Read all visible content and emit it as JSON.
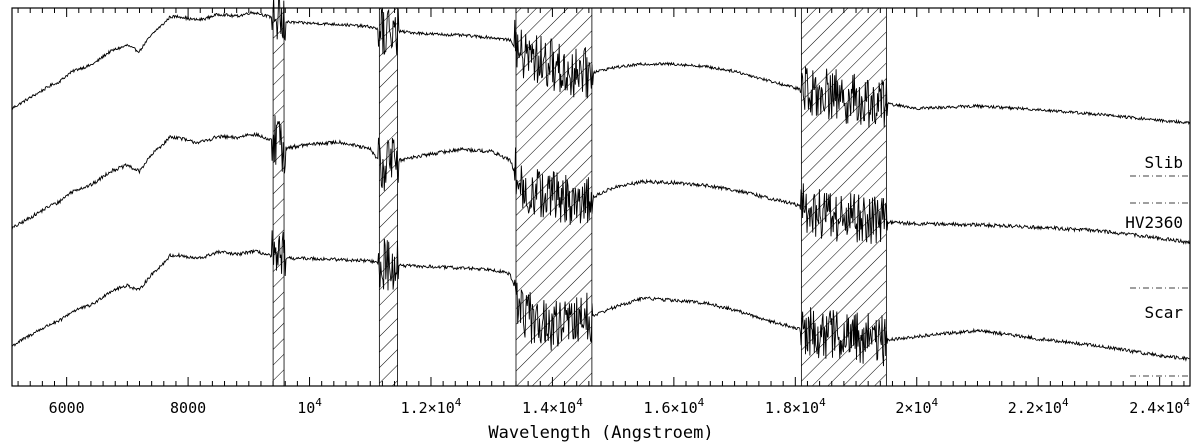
{
  "chart_data": {
    "type": "line",
    "title": "",
    "xlabel": "Wavelength (Angstroem)",
    "ylabel": "",
    "xlim": [
      5100,
      24500
    ],
    "grid": false,
    "legend": "none",
    "x_ticks": [
      {
        "value": 6000,
        "label": "6000"
      },
      {
        "value": 8000,
        "label": "8000"
      },
      {
        "value": 10000,
        "label": "10",
        "exp": "4",
        "mult": ""
      },
      {
        "value": 12000,
        "label": "1.2×10",
        "exp": "4"
      },
      {
        "value": 14000,
        "label": "1.4×10",
        "exp": "4"
      },
      {
        "value": 16000,
        "label": "1.6×10",
        "exp": "4"
      },
      {
        "value": 18000,
        "label": "1.8×10",
        "exp": "4"
      },
      {
        "value": 20000,
        "label": "2×10",
        "exp": "4"
      },
      {
        "value": 22000,
        "label": "2.2×10",
        "exp": "4"
      },
      {
        "value": 24000,
        "label": "2.4×10",
        "exp": "4"
      }
    ],
    "shaded_regions": [
      [
        9400,
        9580
      ],
      [
        11150,
        11450
      ],
      [
        13400,
        14650
      ],
      [
        18100,
        19500
      ]
    ],
    "series": [
      {
        "name": "Slib",
        "offset": 2.0,
        "noise": 0.012,
        "points": [
          [
            5100,
            0.18
          ],
          [
            5500,
            0.3
          ],
          [
            6000,
            0.45
          ],
          [
            6500,
            0.58
          ],
          [
            7000,
            0.72
          ],
          [
            7200,
            0.65
          ],
          [
            7500,
            0.85
          ],
          [
            7700,
            0.95
          ],
          [
            8000,
            0.92
          ],
          [
            8500,
            0.95
          ],
          [
            9000,
            0.97
          ],
          [
            9400,
            0.95
          ],
          [
            9600,
            0.9
          ],
          [
            10000,
            0.89
          ],
          [
            10500,
            0.88
          ],
          [
            11000,
            0.86
          ],
          [
            11200,
            0.83
          ],
          [
            11500,
            0.82
          ],
          [
            12000,
            0.8
          ],
          [
            12500,
            0.79
          ],
          [
            13000,
            0.77
          ],
          [
            13300,
            0.75
          ],
          [
            13500,
            0.62
          ],
          [
            13800,
            0.58
          ],
          [
            14000,
            0.55
          ],
          [
            14200,
            0.48
          ],
          [
            14500,
            0.46
          ],
          [
            15000,
            0.52
          ],
          [
            15500,
            0.55
          ],
          [
            16000,
            0.55
          ],
          [
            16500,
            0.53
          ],
          [
            17000,
            0.49
          ],
          [
            17500,
            0.42
          ],
          [
            18000,
            0.35
          ],
          [
            18500,
            0.31
          ],
          [
            19000,
            0.25
          ],
          [
            19500,
            0.22
          ],
          [
            20000,
            0.18
          ],
          [
            21000,
            0.2
          ],
          [
            22000,
            0.17
          ],
          [
            23000,
            0.13
          ],
          [
            24000,
            0.08
          ],
          [
            24500,
            0.06
          ]
        ]
      },
      {
        "name": "HV2360",
        "offset": 1.0,
        "noise": 0.015,
        "points": [
          [
            5100,
            0.18
          ],
          [
            5500,
            0.3
          ],
          [
            6000,
            0.45
          ],
          [
            6500,
            0.58
          ],
          [
            7000,
            0.72
          ],
          [
            7200,
            0.65
          ],
          [
            7500,
            0.85
          ],
          [
            7700,
            0.95
          ],
          [
            8000,
            0.9
          ],
          [
            8500,
            0.93
          ],
          [
            9000,
            0.96
          ],
          [
            9400,
            0.92
          ],
          [
            9600,
            0.85
          ],
          [
            10000,
            0.88
          ],
          [
            10500,
            0.9
          ],
          [
            11000,
            0.84
          ],
          [
            11200,
            0.7
          ],
          [
            11500,
            0.75
          ],
          [
            12000,
            0.8
          ],
          [
            12500,
            0.84
          ],
          [
            13000,
            0.82
          ],
          [
            13300,
            0.75
          ],
          [
            13500,
            0.5
          ],
          [
            14000,
            0.45
          ],
          [
            14500,
            0.4
          ],
          [
            15000,
            0.52
          ],
          [
            15500,
            0.57
          ],
          [
            16000,
            0.56
          ],
          [
            16500,
            0.54
          ],
          [
            17000,
            0.5
          ],
          [
            17500,
            0.44
          ],
          [
            18000,
            0.38
          ],
          [
            18500,
            0.3
          ],
          [
            19000,
            0.26
          ],
          [
            19500,
            0.23
          ],
          [
            20000,
            0.22
          ],
          [
            21000,
            0.21
          ],
          [
            22000,
            0.19
          ],
          [
            23000,
            0.16
          ],
          [
            24000,
            0.1
          ],
          [
            24500,
            0.06
          ]
        ]
      },
      {
        "name": "Scar",
        "offset": 0.0,
        "noise": 0.014,
        "points": [
          [
            5100,
            0.2
          ],
          [
            5500,
            0.32
          ],
          [
            6000,
            0.45
          ],
          [
            6500,
            0.58
          ],
          [
            7000,
            0.72
          ],
          [
            7200,
            0.66
          ],
          [
            7500,
            0.85
          ],
          [
            7700,
            0.96
          ],
          [
            8000,
            0.93
          ],
          [
            8500,
            0.97
          ],
          [
            9000,
            0.98
          ],
          [
            9400,
            0.96
          ],
          [
            9600,
            0.93
          ],
          [
            10000,
            0.93
          ],
          [
            10500,
            0.92
          ],
          [
            11000,
            0.91
          ],
          [
            11200,
            0.88
          ],
          [
            11500,
            0.87
          ],
          [
            12000,
            0.86
          ],
          [
            12500,
            0.85
          ],
          [
            13000,
            0.84
          ],
          [
            13300,
            0.8
          ],
          [
            13500,
            0.48
          ],
          [
            13800,
            0.38
          ],
          [
            14000,
            0.35
          ],
          [
            14500,
            0.42
          ],
          [
            15000,
            0.52
          ],
          [
            15500,
            0.6
          ],
          [
            16000,
            0.58
          ],
          [
            16500,
            0.56
          ],
          [
            17000,
            0.5
          ],
          [
            17500,
            0.42
          ],
          [
            18000,
            0.35
          ],
          [
            18500,
            0.3
          ],
          [
            19000,
            0.26
          ],
          [
            19500,
            0.25
          ],
          [
            20000,
            0.28
          ],
          [
            21000,
            0.33
          ],
          [
            22000,
            0.26
          ],
          [
            23000,
            0.2
          ],
          [
            24000,
            0.12
          ],
          [
            24500,
            0.09
          ]
        ]
      }
    ]
  }
}
